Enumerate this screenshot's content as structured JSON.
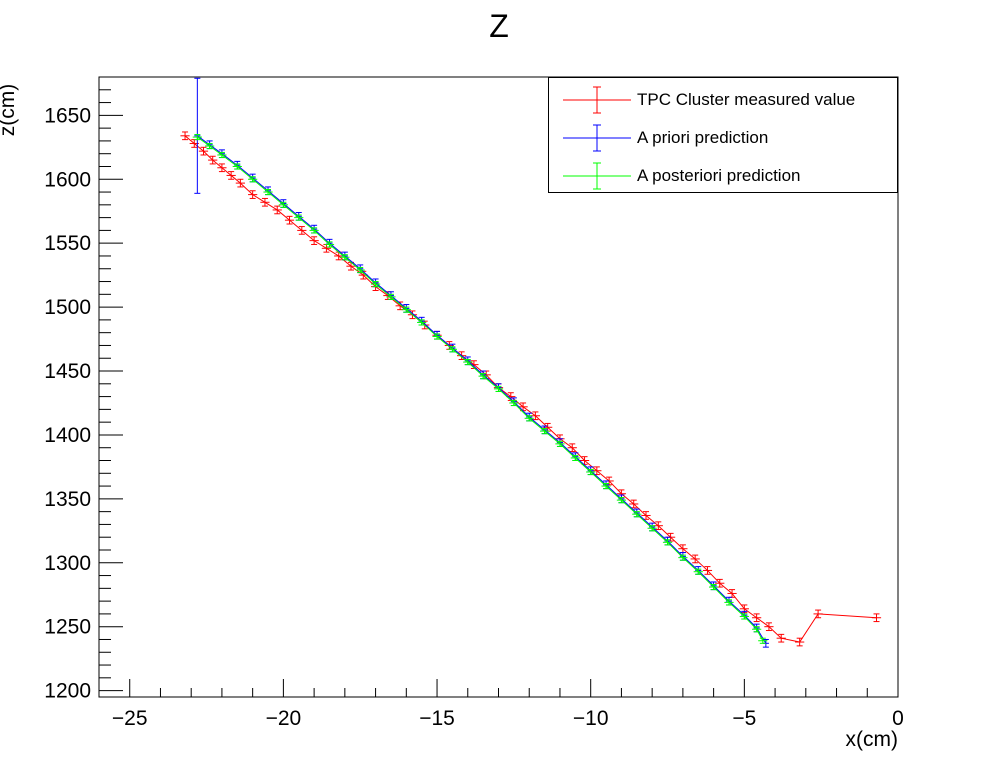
{
  "chart_data": {
    "type": "scatter",
    "title": "Z",
    "xlabel": "x(cm)",
    "ylabel": "z(cm)",
    "xlim": [
      -26,
      0
    ],
    "ylim": [
      1195,
      1680
    ],
    "x_ticks": [
      -25,
      -20,
      -15,
      -10,
      -5,
      0
    ],
    "x_tick_labels": [
      "−25",
      "−20",
      "−15",
      "−10",
      "−5",
      "0"
    ],
    "y_ticks": [
      1200,
      1250,
      1300,
      1350,
      1400,
      1450,
      1500,
      1550,
      1600,
      1650
    ],
    "y_tick_labels": [
      "1200",
      "1250",
      "1300",
      "1350",
      "1400",
      "1450",
      "1500",
      "1550",
      "1600",
      "1650"
    ],
    "legend_position": "top-right",
    "series": [
      {
        "name": "TPC Cluster measured value",
        "color": "#ff0000",
        "x_err": 0.15,
        "y_err": 3,
        "connected": true,
        "x": [
          -23.2,
          -22.9,
          -22.6,
          -22.3,
          -22.0,
          -21.7,
          -21.4,
          -21.0,
          -20.6,
          -20.2,
          -19.8,
          -19.4,
          -19.0,
          -18.6,
          -18.2,
          -17.8,
          -17.4,
          -17.0,
          -16.6,
          -16.2,
          -15.8,
          -15.4,
          -15.0,
          -14.6,
          -14.2,
          -13.8,
          -13.4,
          -13.0,
          -12.6,
          -12.2,
          -11.8,
          -11.4,
          -11.0,
          -10.6,
          -10.2,
          -9.8,
          -9.4,
          -9.0,
          -8.6,
          -8.2,
          -7.8,
          -7.4,
          -7.0,
          -6.6,
          -6.2,
          -5.8,
          -5.4,
          -5.0,
          -4.6,
          -4.2,
          -3.8,
          -3.2,
          -2.6,
          -0.7
        ],
        "y": [
          1634,
          1628,
          1622,
          1615,
          1609,
          1603,
          1597,
          1588,
          1582,
          1576,
          1568,
          1560,
          1552,
          1546,
          1540,
          1532,
          1525,
          1516,
          1509,
          1501,
          1494,
          1486,
          1478,
          1470,
          1462,
          1455,
          1447,
          1437,
          1430,
          1422,
          1415,
          1406,
          1397,
          1390,
          1380,
          1372,
          1364,
          1354,
          1346,
          1337,
          1329,
          1320,
          1311,
          1303,
          1294,
          1284,
          1276,
          1264,
          1257,
          1250,
          1241,
          1238,
          1260,
          1257
        ]
      },
      {
        "name": "A priori prediction",
        "color": "#0000ff",
        "x_err": 0.1,
        "y_err": 3,
        "connected": true,
        "x": [
          -22.8,
          -22.4,
          -22.0,
          -21.5,
          -21.0,
          -20.5,
          -20.0,
          -19.5,
          -19.0,
          -18.5,
          -18.0,
          -17.5,
          -17.0,
          -16.5,
          -16.0,
          -15.5,
          -15.0,
          -14.5,
          -14.0,
          -13.5,
          -13.0,
          -12.5,
          -12.0,
          -11.5,
          -11.0,
          -10.5,
          -10.0,
          -9.5,
          -9.0,
          -8.5,
          -8.0,
          -7.5,
          -7.0,
          -6.5,
          -6.0,
          -5.5,
          -5.0,
          -4.6,
          -4.3
        ],
        "y": [
          1634,
          1627,
          1620,
          1611,
          1601,
          1591,
          1581,
          1571,
          1561,
          1550,
          1540,
          1530,
          1519,
          1509,
          1499,
          1489,
          1478,
          1468,
          1458,
          1447,
          1437,
          1426,
          1414,
          1404,
          1394,
          1383,
          1372,
          1361,
          1350,
          1339,
          1328,
          1317,
          1305,
          1294,
          1282,
          1270,
          1259,
          1249,
          1237
        ],
        "first_point_y_err": 45
      },
      {
        "name": "A posteriori prediction",
        "color": "#00ff00",
        "x_err": 0.15,
        "y_err": 2,
        "connected": true,
        "x": [
          -22.8,
          -22.4,
          -22.0,
          -21.5,
          -21.0,
          -20.5,
          -20.0,
          -19.5,
          -19.0,
          -18.5,
          -18.0,
          -17.5,
          -17.0,
          -16.5,
          -16.0,
          -15.5,
          -15.0,
          -14.5,
          -14.0,
          -13.5,
          -13.0,
          -12.5,
          -12.0,
          -11.5,
          -11.0,
          -10.5,
          -10.0,
          -9.5,
          -9.0,
          -8.5,
          -8.0,
          -7.5,
          -7.0,
          -6.5,
          -6.0,
          -5.5,
          -5.0,
          -4.6,
          -4.4
        ],
        "y": [
          1633,
          1626,
          1619,
          1610,
          1600,
          1590,
          1580,
          1570,
          1560,
          1549,
          1539,
          1529,
          1518,
          1508,
          1498,
          1488,
          1477,
          1467,
          1457,
          1446,
          1436,
          1425,
          1413,
          1403,
          1393,
          1382,
          1371,
          1360,
          1349,
          1338,
          1327,
          1316,
          1304,
          1293,
          1281,
          1269,
          1258,
          1248,
          1239
        ]
      }
    ]
  }
}
